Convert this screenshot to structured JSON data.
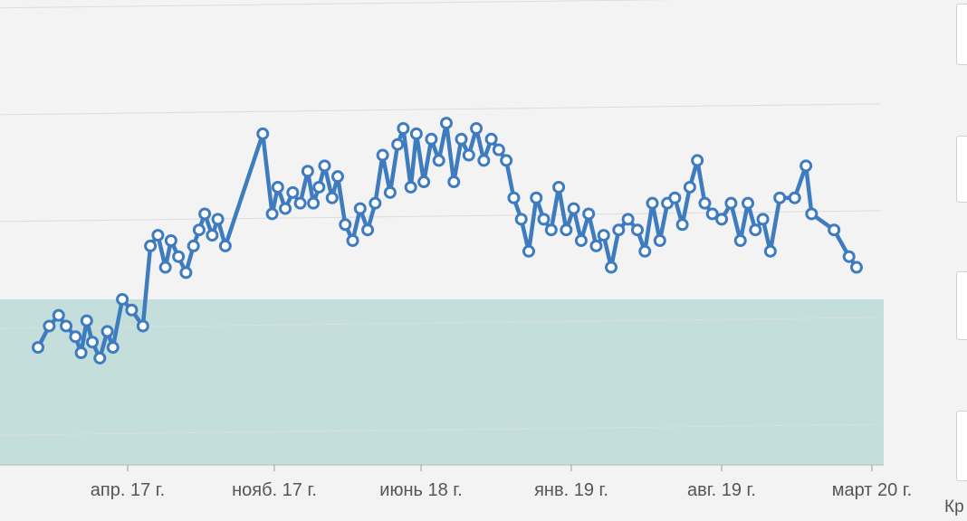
{
  "chart_data": {
    "type": "line",
    "title": "",
    "xlabel": "",
    "ylabel": "",
    "x_ticks": [
      "апр. 17 г.",
      "нояб. 17 г.",
      "июнь 18 г.",
      "янв. 19 г.",
      "авг. 19 г.",
      "март 20 г."
    ],
    "band": {
      "ylim": [
        0,
        1.55
      ]
    },
    "colors": {
      "line": "#3f7cbf",
      "marker_fill": "#ffffff",
      "band": "#c3dedb",
      "grid": "#dddddd",
      "axis": "#bbbbbb"
    },
    "grid": true,
    "ylim": [
      0,
      4.2
    ],
    "series": [
      {
        "values": [
          [
            0.0,
            1.1
          ],
          [
            0.6,
            1.3
          ],
          [
            1.1,
            1.4
          ],
          [
            1.5,
            1.3
          ],
          [
            2.0,
            1.2
          ],
          [
            2.3,
            1.05
          ],
          [
            2.6,
            1.35
          ],
          [
            2.9,
            1.15
          ],
          [
            3.3,
            1.0
          ],
          [
            3.7,
            1.25
          ],
          [
            4.0,
            1.1
          ],
          [
            4.5,
            1.55
          ],
          [
            5.0,
            1.45
          ],
          [
            5.6,
            1.3
          ],
          [
            6.0,
            2.05
          ],
          [
            6.4,
            2.15
          ],
          [
            6.8,
            1.85
          ],
          [
            7.1,
            2.1
          ],
          [
            7.5,
            1.95
          ],
          [
            7.9,
            1.8
          ],
          [
            8.3,
            2.05
          ],
          [
            8.6,
            2.2
          ],
          [
            8.9,
            2.35
          ],
          [
            9.3,
            2.15
          ],
          [
            9.6,
            2.3
          ],
          [
            10.0,
            2.05
          ],
          [
            12.0,
            3.1
          ],
          [
            12.5,
            2.35
          ],
          [
            12.8,
            2.6
          ],
          [
            13.2,
            2.4
          ],
          [
            13.6,
            2.55
          ],
          [
            14.0,
            2.45
          ],
          [
            14.4,
            2.75
          ],
          [
            14.7,
            2.45
          ],
          [
            15.0,
            2.6
          ],
          [
            15.3,
            2.8
          ],
          [
            15.7,
            2.5
          ],
          [
            16.0,
            2.7
          ],
          [
            16.4,
            2.25
          ],
          [
            16.8,
            2.1
          ],
          [
            17.2,
            2.4
          ],
          [
            17.6,
            2.2
          ],
          [
            18.0,
            2.45
          ],
          [
            18.4,
            2.9
          ],
          [
            18.8,
            2.55
          ],
          [
            19.2,
            3.0
          ],
          [
            19.5,
            3.15
          ],
          [
            19.9,
            2.6
          ],
          [
            20.2,
            3.1
          ],
          [
            20.6,
            2.65
          ],
          [
            21.0,
            3.05
          ],
          [
            21.4,
            2.85
          ],
          [
            21.8,
            3.2
          ],
          [
            22.2,
            2.65
          ],
          [
            22.6,
            3.05
          ],
          [
            23.0,
            2.9
          ],
          [
            23.4,
            3.15
          ],
          [
            23.8,
            2.85
          ],
          [
            24.2,
            3.05
          ],
          [
            24.6,
            2.95
          ],
          [
            25.0,
            2.85
          ],
          [
            25.4,
            2.5
          ],
          [
            25.8,
            2.3
          ],
          [
            26.2,
            2.0
          ],
          [
            26.6,
            2.5
          ],
          [
            27.0,
            2.3
          ],
          [
            27.4,
            2.2
          ],
          [
            27.8,
            2.6
          ],
          [
            28.2,
            2.2
          ],
          [
            28.6,
            2.4
          ],
          [
            29.0,
            2.1
          ],
          [
            29.4,
            2.35
          ],
          [
            29.8,
            2.05
          ],
          [
            30.2,
            2.15
          ],
          [
            30.6,
            1.85
          ],
          [
            31.0,
            2.2
          ],
          [
            31.5,
            2.3
          ],
          [
            32.0,
            2.2
          ],
          [
            32.4,
            2.0
          ],
          [
            32.8,
            2.45
          ],
          [
            33.2,
            2.1
          ],
          [
            33.6,
            2.45
          ],
          [
            34.0,
            2.5
          ],
          [
            34.4,
            2.25
          ],
          [
            34.8,
            2.6
          ],
          [
            35.2,
            2.85
          ],
          [
            35.6,
            2.45
          ],
          [
            36.0,
            2.35
          ],
          [
            36.5,
            2.3
          ],
          [
            37.0,
            2.45
          ],
          [
            37.5,
            2.1
          ],
          [
            37.9,
            2.45
          ],
          [
            38.3,
            2.2
          ],
          [
            38.7,
            2.3
          ],
          [
            39.1,
            2.0
          ],
          [
            39.6,
            2.5
          ],
          [
            40.4,
            2.5
          ],
          [
            41.0,
            2.8
          ],
          [
            41.3,
            2.35
          ],
          [
            42.5,
            2.2
          ],
          [
            43.3,
            1.95
          ],
          [
            43.7,
            1.85
          ]
        ]
      }
    ]
  }
}
